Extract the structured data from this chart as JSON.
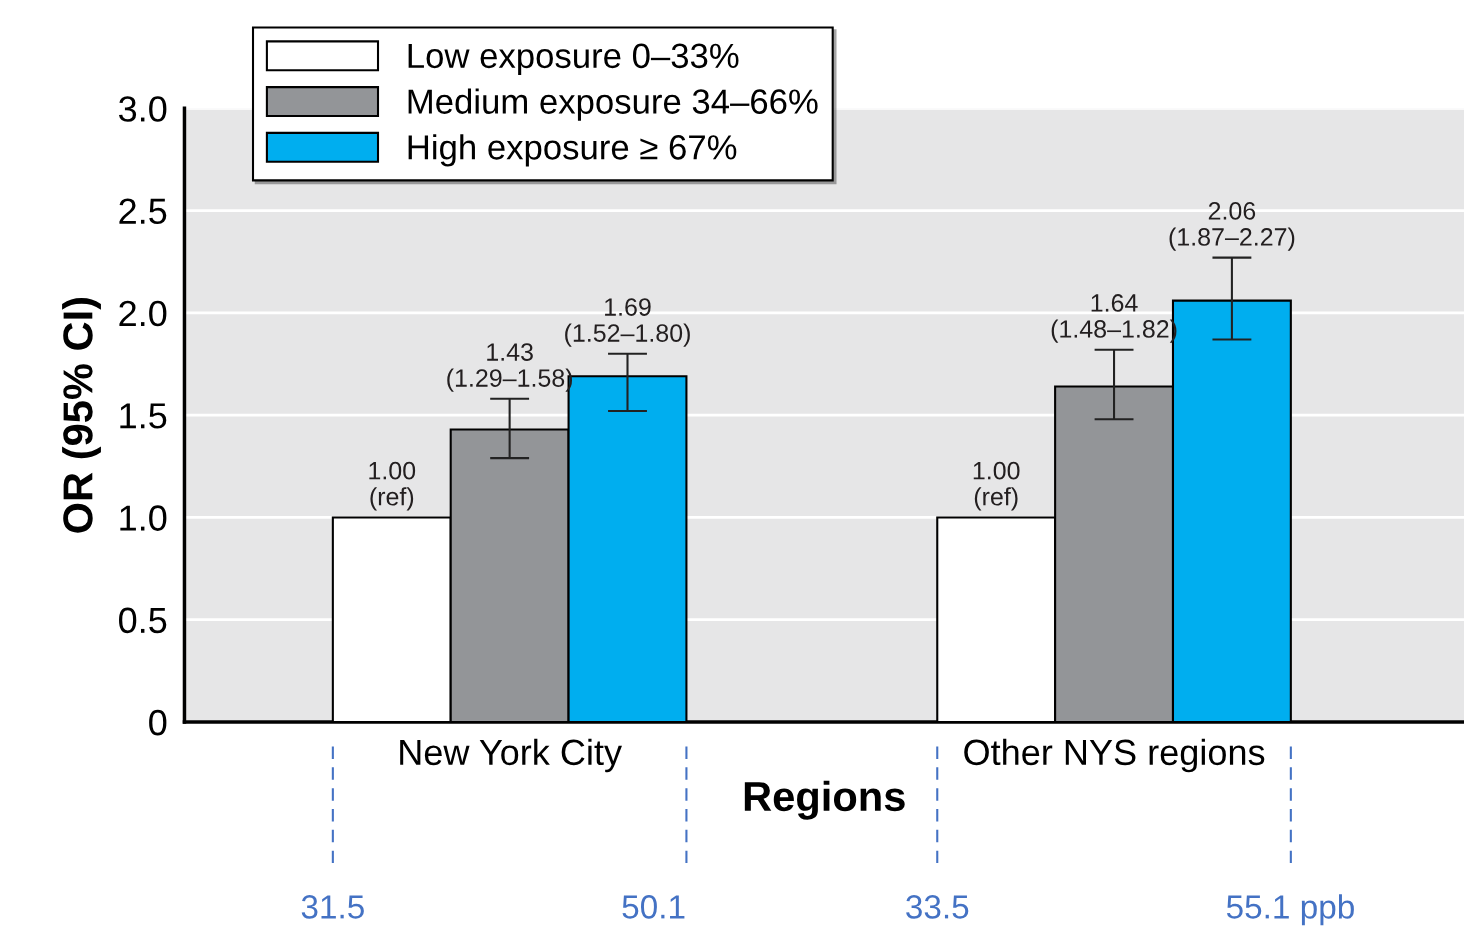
{
  "chart_data": {
    "type": "bar",
    "xlabel": "Regions",
    "ylabel": "OR (95% CI)",
    "categories": [
      "New York City",
      "Other NYS regions"
    ],
    "series": [
      {
        "name": "Low exposure 0–33%",
        "color": "#ffffff",
        "values": [
          1.0,
          1.0
        ],
        "value_labels": [
          "1.00\n(ref)",
          "1.00\n(ref)"
        ]
      },
      {
        "name": "Medium exposure 34–66%",
        "color": "#939598",
        "values": [
          1.43,
          1.64
        ],
        "errors": [
          [
            1.29,
            1.58
          ],
          [
            1.48,
            1.82
          ]
        ],
        "value_labels": [
          "1.43\n(1.29–1.58)",
          "1.64\n(1.48–1.82)"
        ]
      },
      {
        "name": "High exposure ≥ 67%",
        "color": "#00aeef",
        "values": [
          1.69,
          2.06
        ],
        "errors": [
          [
            1.52,
            1.8
          ],
          [
            1.87,
            2.27
          ]
        ],
        "value_labels": [
          "1.69\n(1.52–1.80)",
          "2.06\n(1.87–2.27)"
        ]
      }
    ],
    "ylim": [
      0,
      3
    ],
    "yticks": [
      0,
      0.5,
      {
        "value": 1,
        "label": "1.0"
      },
      1.5,
      {
        "value": 2,
        "label": "2.0"
      },
      2.5,
      {
        "value": 3,
        "label": "3.0"
      }
    ],
    "grid": "y",
    "legend": "top left",
    "annotations": [
      "31.5",
      "50.1",
      "33.5",
      "55.1 ppb"
    ]
  }
}
